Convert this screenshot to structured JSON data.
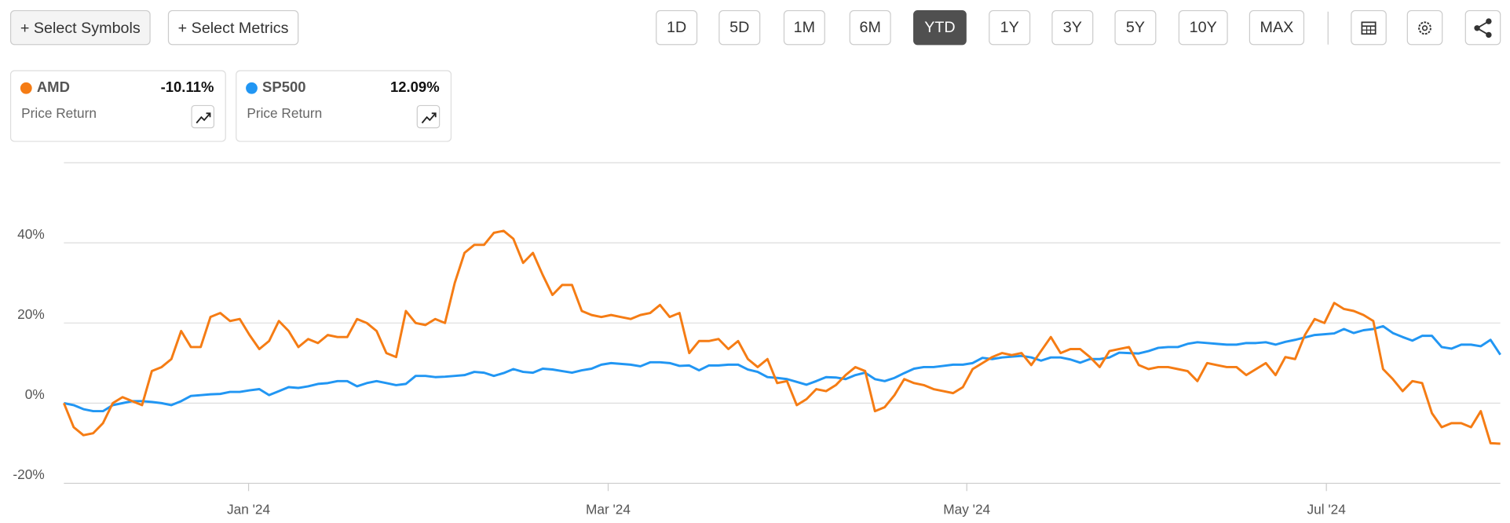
{
  "toolbar": {
    "buttons": [
      "+ Select Symbols",
      "+ Select Metrics"
    ],
    "ranges": [
      "1D",
      "5D",
      "1M",
      "6M",
      "YTD",
      "1Y",
      "3Y",
      "5Y",
      "10Y",
      "MAX"
    ],
    "active": "YTD"
  },
  "chart_data": {
    "type": "line",
    "series": [
      {
        "name": "AMD",
        "color": "#f57c14",
        "value_label": "-10.11%",
        "metric": "Price Return",
        "values": [
          0,
          -6,
          -8,
          -7.5,
          -5,
          0,
          1.5,
          0.5,
          -0.5,
          8,
          9,
          11,
          18,
          14,
          14,
          21.5,
          22.5,
          20.5,
          21,
          17,
          13.5,
          15.5,
          20.5,
          18,
          14,
          16,
          15,
          17,
          16.5,
          16.5,
          21,
          20,
          18,
          12.5,
          11.5,
          23,
          20,
          19.5,
          21,
          20,
          30,
          37.5,
          39.5,
          39.5,
          42.5,
          43,
          41,
          35,
          37.5,
          32,
          27,
          29.5,
          29.5,
          23,
          22,
          21.5,
          22,
          21.5,
          21,
          22,
          22.5,
          24.5,
          21.5,
          22.5,
          12.5,
          15.5,
          15.5,
          16,
          13.5,
          15.5,
          11,
          9,
          11,
          5,
          5.5,
          -0.5,
          1,
          3.5,
          3,
          4.5,
          7,
          9,
          8,
          -2,
          -1,
          2,
          6,
          5,
          4.5,
          3.5,
          3,
          2.5,
          4,
          8.5,
          10,
          11.5,
          12.5,
          12,
          12.5,
          9.5,
          13,
          16.5,
          12.5,
          13.5,
          13.5,
          11.5,
          9,
          13,
          13.5,
          14,
          9.5,
          8.5,
          9,
          9,
          8.5,
          8,
          5.5,
          10,
          9.5,
          9,
          9,
          7,
          8.5,
          10,
          7,
          11.5,
          11,
          17,
          21,
          20,
          25,
          23.5,
          23,
          22,
          20.5,
          8.5,
          6,
          3,
          5.5,
          5,
          -2.5,
          -6,
          -5,
          -5,
          -6,
          -2,
          -10,
          -10.11
        ]
      },
      {
        "name": "SP500",
        "color": "#2196f3",
        "value_label": "12.09%",
        "metric": "Price Return",
        "values": [
          0,
          -0.5,
          -1.5,
          -2,
          -2,
          -0.5,
          0,
          0.5,
          0.5,
          0.3,
          0,
          -0.5,
          0.5,
          1.8,
          2,
          2.2,
          2.3,
          2.8,
          2.8,
          3.2,
          3.5,
          2,
          3,
          4,
          3.8,
          4.2,
          4.8,
          5,
          5.5,
          5.5,
          4.2,
          5,
          5.5,
          5,
          4.5,
          4.8,
          6.8,
          6.8,
          6.5,
          6.6,
          6.8,
          7,
          7.8,
          7.6,
          6.8,
          7.5,
          8.5,
          7.8,
          7.6,
          8.6,
          8.4,
          8,
          7.6,
          8.2,
          8.6,
          9.6,
          10,
          9.8,
          9.6,
          9.2,
          10.2,
          10.2,
          10,
          9.3,
          9.4,
          8.2,
          9.4,
          9.4,
          9.6,
          9.6,
          8.4,
          7.8,
          6.5,
          6.3,
          6,
          5.3,
          4.6,
          5.5,
          6.5,
          6.4,
          6,
          7,
          7.6,
          6,
          5.5,
          6.3,
          7.5,
          8.6,
          9,
          9,
          9.3,
          9.6,
          9.6,
          10,
          11.3,
          11,
          11.4,
          11.6,
          11.8,
          11.4,
          10.6,
          11.4,
          11.4,
          10.9,
          10.1,
          11,
          11,
          11.4,
          12.6,
          12.5,
          12.4,
          13,
          13.8,
          14,
          14,
          14.8,
          15.2,
          15,
          14.8,
          14.6,
          14.6,
          15,
          15,
          15.2,
          14.6,
          15.3,
          15.8,
          16.4,
          17,
          17.2,
          17.4,
          18.5,
          17.5,
          18.2,
          18.5,
          19.2,
          17.5,
          16.5,
          15.6,
          16.8,
          16.8,
          14,
          13.6,
          14.6,
          14.6,
          14.2,
          15.8,
          12.09
        ]
      }
    ],
    "xlim": [
      0,
      147
    ],
    "xticks": [
      {
        "value": 18.9,
        "label": "Jan '24"
      },
      {
        "value": 55.7,
        "label": "Mar '24"
      },
      {
        "value": 92.4,
        "label": "May '24"
      },
      {
        "value": 129.2,
        "label": "Jul '24"
      }
    ],
    "ylim": [
      -20,
      60
    ],
    "yticks": [
      {
        "value": -20,
        "label": "-20%"
      },
      {
        "value": 0,
        "label": "0%"
      },
      {
        "value": 20,
        "label": "20%"
      },
      {
        "value": 40,
        "label": "40%"
      }
    ],
    "grid": true
  }
}
